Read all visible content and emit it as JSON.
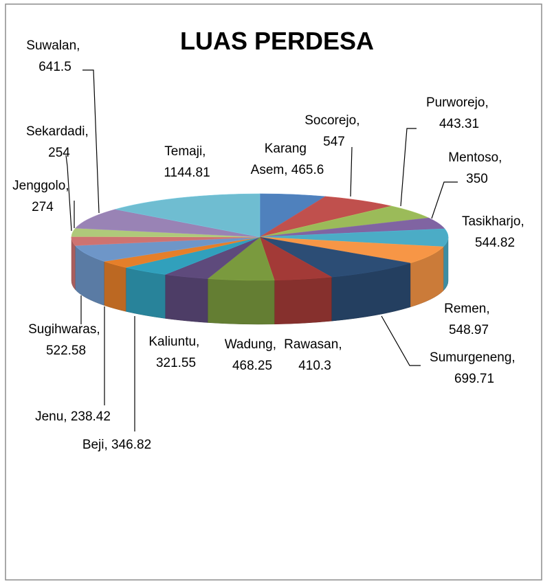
{
  "chart_data": {
    "type": "pie3d",
    "title": "LUAS PERDESA",
    "labels": [
      "Karang Asem, 465.6",
      "Socorejo, 547",
      "Purworejo, 443.31",
      "Mentoso, 350",
      "Tasikharjo, 544.82",
      "Remen, 548.97",
      "Sumurgeneng, 699.71",
      "Rawasan, 410.3",
      "Wadung, 468.25",
      "Kaliuntu, 321.55",
      "Beji, 346.82",
      "Jenu, 238.42",
      "Sugihwaras, 522.58",
      "Jenggolo, 274",
      "Sekardadi, 254",
      "Suwalan, 641.5",
      "Temaji, 1144.81"
    ],
    "values": [
      465.6,
      547,
      443.31,
      350,
      544.82,
      548.97,
      699.71,
      410.3,
      468.25,
      321.55,
      346.82,
      238.42,
      522.58,
      274,
      254,
      641.5,
      1144.81
    ],
    "colors": [
      "#4F81BD",
      "#C0504D",
      "#9BBB59",
      "#8064A2",
      "#4BACC6",
      "#F79646",
      "#2C4D75",
      "#A33A37",
      "#7A9A3E",
      "#5E4A7C",
      "#31A0BC",
      "#E57F2A",
      "#6E96C8",
      "#CD7371",
      "#AFC97A",
      "#9983B5",
      "#6FBDD1"
    ]
  }
}
